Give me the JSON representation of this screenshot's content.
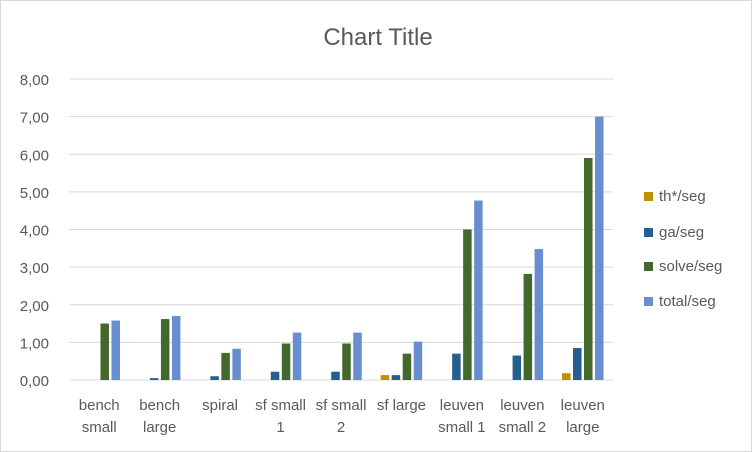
{
  "chart_data": {
    "type": "bar",
    "title": "Chart Title",
    "xlabel": "",
    "ylabel": "",
    "ylim": [
      0,
      8
    ],
    "yticks": [
      "0,00",
      "1,00",
      "2,00",
      "3,00",
      "4,00",
      "5,00",
      "6,00",
      "7,00",
      "8,00"
    ],
    "grid": true,
    "legend_position": "right",
    "categories": [
      [
        "bench",
        "small"
      ],
      [
        "bench",
        "large"
      ],
      [
        "spiral"
      ],
      [
        "sf small",
        "1"
      ],
      [
        "sf small",
        "2"
      ],
      [
        "sf large"
      ],
      [
        "leuven",
        "small 1"
      ],
      [
        "leuven",
        "small 2"
      ],
      [
        "leuven",
        "large"
      ]
    ],
    "series": [
      {
        "name": "th*/seg",
        "color": "#BF8F00",
        "values": [
          0,
          0,
          0,
          0,
          0,
          0.13,
          0,
          0,
          0.18
        ]
      },
      {
        "name": "ga/seg",
        "color": "#255E91",
        "values": [
          0,
          0.05,
          0.1,
          0.22,
          0.22,
          0.13,
          0.7,
          0.65,
          0.85
        ]
      },
      {
        "name": "solve/seg",
        "color": "#43682B",
        "values": [
          1.5,
          1.62,
          0.72,
          0.97,
          0.97,
          0.7,
          4.0,
          2.82,
          5.9
        ]
      },
      {
        "name": "total/seg",
        "color": "#698ED0",
        "values": [
          1.58,
          1.7,
          0.83,
          1.26,
          1.26,
          1.02,
          4.77,
          3.48,
          7.0
        ]
      }
    ]
  }
}
